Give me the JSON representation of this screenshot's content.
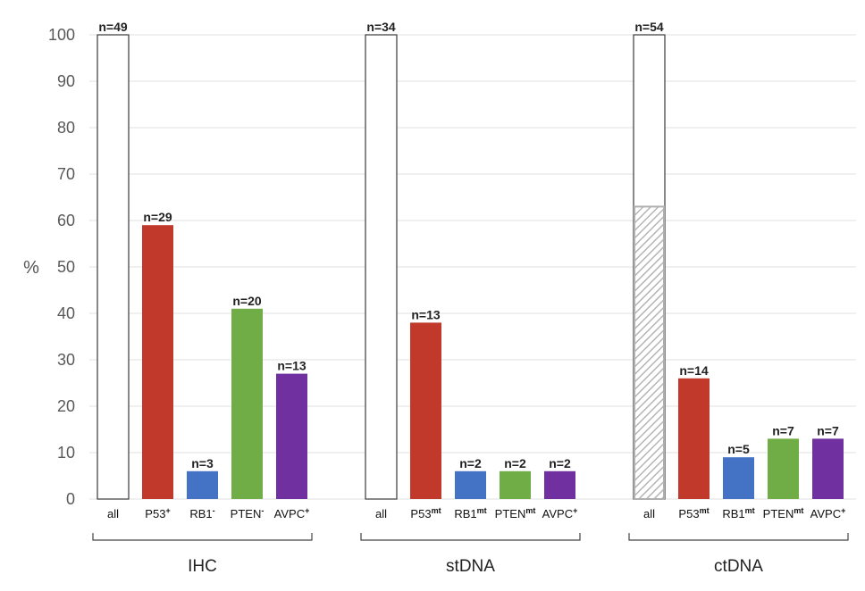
{
  "chart_data": {
    "type": "bar",
    "ylabel": "%",
    "ylim": [
      0,
      100
    ],
    "yticks": [
      0,
      10,
      20,
      30,
      40,
      50,
      60,
      70,
      80,
      90,
      100
    ],
    "grid": true,
    "legend": "none",
    "groups": [
      {
        "name": "IHC",
        "bars": [
          {
            "label": "all",
            "sup": "",
            "value": 100,
            "n_label": "n=49",
            "color": "#ffffff"
          },
          {
            "label": "P53",
            "sup": "+",
            "value": 59,
            "n_label": "n=29",
            "color": "#c0392b"
          },
          {
            "label": "RB1",
            "sup": "-",
            "value": 6,
            "n_label": "n=3",
            "color": "#4472c4"
          },
          {
            "label": "PTEN",
            "sup": "-",
            "value": 41,
            "n_label": "n=20",
            "color": "#70ad47"
          },
          {
            "label": "AVPC",
            "sup": "+",
            "value": 27,
            "n_label": "n=13",
            "color": "#7030a0"
          }
        ]
      },
      {
        "name": "stDNA",
        "bars": [
          {
            "label": "all",
            "sup": "",
            "value": 100,
            "n_label": "n=34",
            "color": "#ffffff"
          },
          {
            "label": "P53",
            "sup": "mt",
            "value": 38,
            "n_label": "n=13",
            "color": "#c0392b"
          },
          {
            "label": "RB1",
            "sup": "mt",
            "value": 6,
            "n_label": "n=2",
            "color": "#4472c4"
          },
          {
            "label": "PTEN",
            "sup": "mt",
            "value": 6,
            "n_label": "n=2",
            "color": "#70ad47"
          },
          {
            "label": "AVPC",
            "sup": "+",
            "value": 6,
            "n_label": "n=2",
            "color": "#7030a0"
          }
        ]
      },
      {
        "name": "ctDNA",
        "bars": [
          {
            "label": "all",
            "sup": "",
            "value": 100,
            "hatched_value": 63,
            "n_label": "n=54",
            "color": "#ffffff"
          },
          {
            "label": "P53",
            "sup": "mt",
            "value": 26,
            "n_label": "n=14",
            "color": "#c0392b"
          },
          {
            "label": "RB1",
            "sup": "mt",
            "value": 9,
            "n_label": "n=5",
            "color": "#4472c4"
          },
          {
            "label": "PTEN",
            "sup": "mt",
            "value": 13,
            "n_label": "n=7",
            "color": "#70ad47"
          },
          {
            "label": "AVPC",
            "sup": "+",
            "value": 13,
            "n_label": "n=7",
            "color": "#7030a0"
          }
        ]
      }
    ]
  }
}
